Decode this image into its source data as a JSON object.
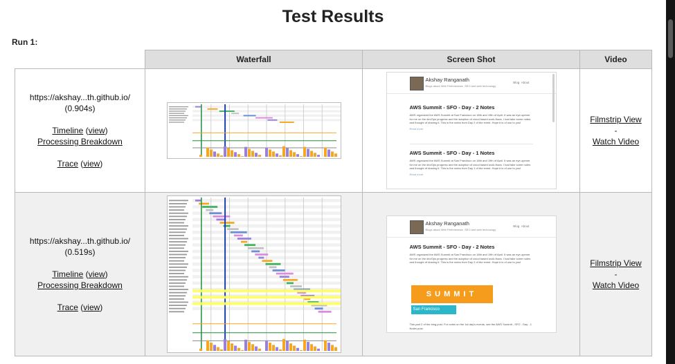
{
  "page": {
    "title": "Test Results",
    "run_label": "Run 1:"
  },
  "table": {
    "headers": {
      "waterfall": "Waterfall",
      "screenshot": "Screen Shot",
      "video": "Video"
    },
    "rows": [
      {
        "url": "https://akshay...th.github.io/",
        "time": "(0.904s)",
        "timeline": "Timeline",
        "timeline_view": "view",
        "processing": "Processing Breakdown",
        "trace": "Trace",
        "trace_view": "view",
        "filmstrip": "Filmstrip View",
        "dash": "-",
        "watch": "Watch Video",
        "shot": {
          "author": "Akshay Ranganath",
          "tagline": "Blogs about Web Performance, SEO and web technology",
          "nav": [
            "Blog",
            "About"
          ],
          "posts": [
            {
              "title": "AWS Summit - SFO - Day - 2 Notes",
              "body": "AWS organized the AWS Summit at San Francisco on 18th and 19th of April. It was an eye-opener for me on the devOps progress and the adoption of cloud based work-flows. I had take some notes and thought of sharing it. This is the notes from Day 2 of the event. Hope it is of use to you!",
              "more": "Read more"
            },
            {
              "title": "AWS Summit - SFO - Day - 1 Notes",
              "body": "AWS organized the AWS Summit at San Francisco on 18th and 19th of April. It was an eye-opener for me on the devOps progress and the adoption of cloud based work-flows. I had take some notes and thought of sharing it. This is the notes from Day 1 of the event. Hope it is of use to you!",
              "more": "Read more"
            }
          ]
        }
      },
      {
        "url": "https://akshay...th.github.io/",
        "time": "(0.519s)",
        "timeline": "Timeline",
        "timeline_view": "view",
        "processing": "Processing Breakdown",
        "trace": "Trace",
        "trace_view": "view",
        "filmstrip": "Filmstrip View",
        "dash": "-",
        "watch": "Watch Video",
        "shot": {
          "author": "Akshay Ranganath",
          "tagline": "Blogs about Web Performance, SEO and web technology",
          "nav": [
            "Blog",
            "About"
          ],
          "posts": [
            {
              "title": "AWS Summit - SFO - Day - 2 Notes",
              "body": "AWS organized the AWS Summit at San Francisco on 18th and 19th of April. It was an eye-opener for me on the devOps progress and the adoption of cloud based work-flows. I had take some notes and thought of sharing it. This is the notes from Day 2 of the event. Hope it is of use to you!"
            }
          ],
          "banner": "SUMMIT",
          "banner_sub": "San Francisco",
          "footer": "This part 2 of the blog post. For notes on the 1st day's events, see the AWS Summit - SFO - Day - 1 Notes post."
        }
      }
    ]
  },
  "colors": {
    "header_bg": "#dedede",
    "row_alt_bg": "#f0f0f0",
    "border": "#b8b8b8",
    "wf_orange": "#f5a623",
    "wf_purple": "#9b7fe0",
    "wf_green": "#1a8f3a",
    "wf_blue": "#1f3fae",
    "wf_yellow": "#ffff5a"
  }
}
